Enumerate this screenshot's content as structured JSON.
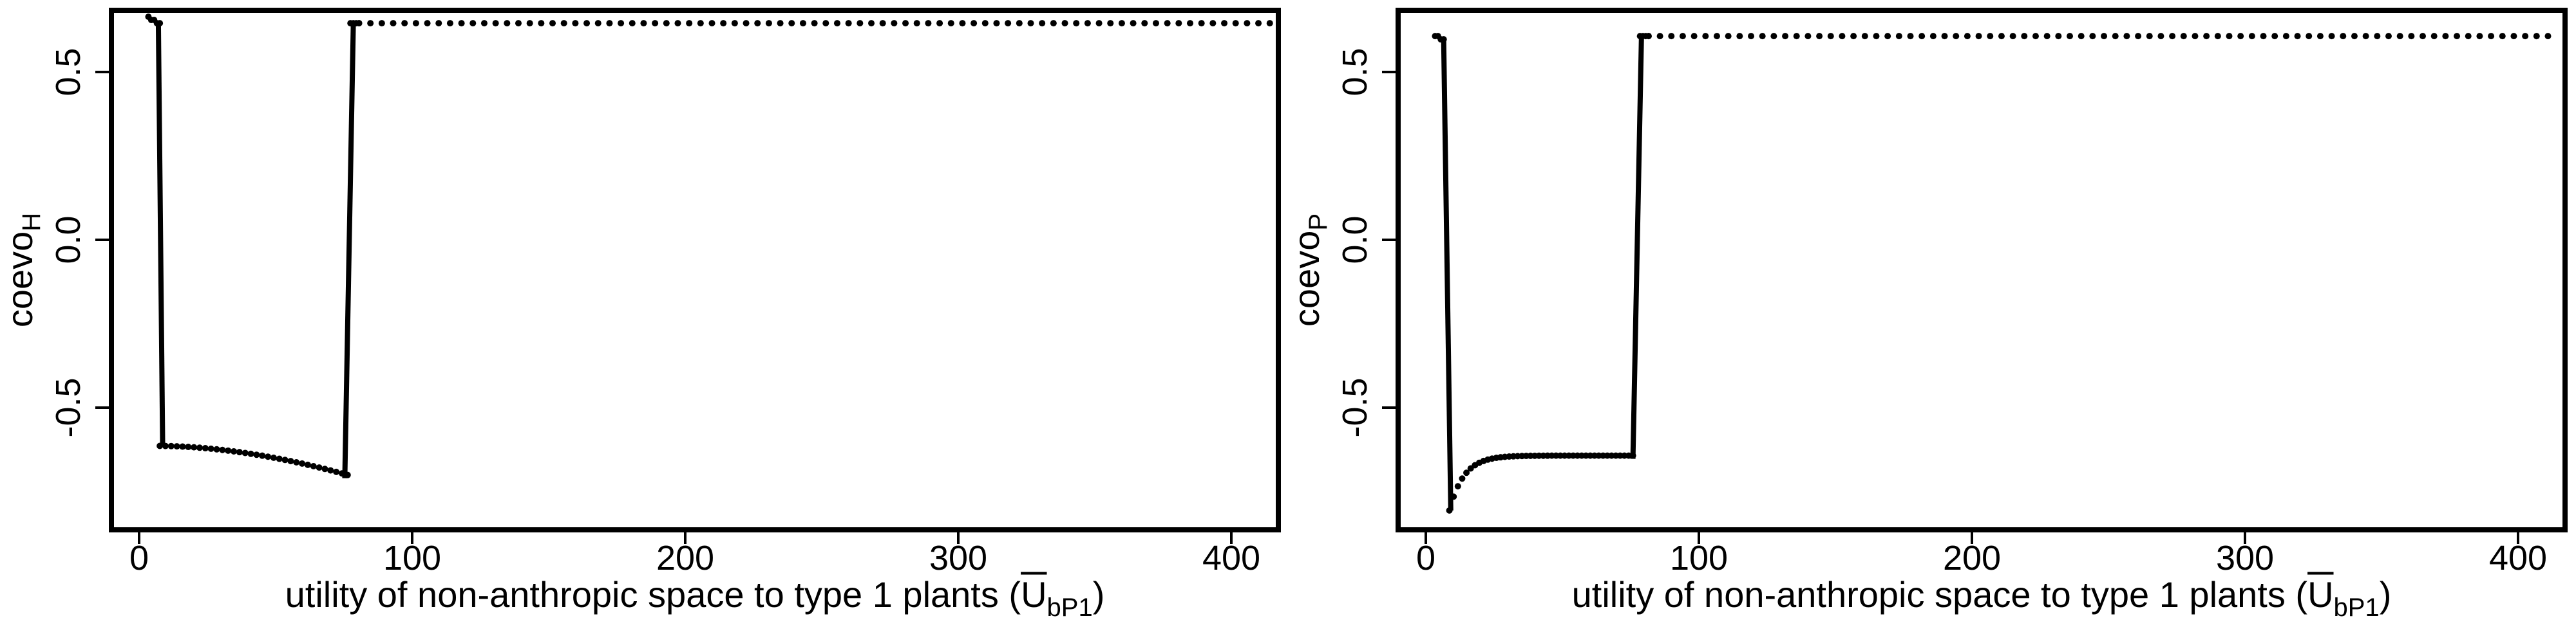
{
  "chart_data": [
    {
      "type": "scatter",
      "title": "",
      "xlabel": {
        "main": "utility of non-anthropic space to type 1 plants (",
        "symbol": "U",
        "subscript": "bP1",
        "close": ")"
      },
      "ylabel": {
        "main": "coevo",
        "subscript": "H"
      },
      "xlim": [
        -5,
        405
      ],
      "ylim": [
        -0.93,
        0.68
      ],
      "xticks": [
        0,
        100,
        200,
        300,
        400
      ],
      "xtick_labels": [
        "0",
        "100",
        "200",
        "300",
        "400"
      ],
      "yticks": [
        0.5,
        0.0,
        -0.5
      ],
      "ytick_labels": [
        "0.5",
        "0.0",
        "-0.5"
      ],
      "grid": false,
      "legend": "none",
      "color": "#000000",
      "segments": [
        {
          "x_start": 8,
          "x_end": 12,
          "x_step": 1,
          "y": [
            0.66,
            0.65,
            0.65,
            0.64,
            0.64
          ]
        },
        {
          "x_start": 12,
          "x_end": 78,
          "x_step": 2,
          "curve": "slow_decay",
          "y_start": -0.67,
          "y_end": -0.76
        },
        {
          "x_start": 79,
          "x_end": 82,
          "x_step": 1,
          "y": [
            0.64,
            0.64,
            0.64,
            0.64
          ]
        },
        {
          "x_start": 82,
          "x_end": 400,
          "x_step": 4,
          "constant": 0.64
        }
      ],
      "jumps": [
        {
          "x": [
            11.5,
            13
          ],
          "y": [
            0.64,
            -0.67
          ]
        },
        {
          "x": [
            77,
            80
          ],
          "y": [
            -0.77,
            0.64
          ]
        }
      ]
    },
    {
      "type": "scatter",
      "title": "",
      "xlabel": {
        "main": "utility of non-anthropic space to type 1 plants (",
        "symbol": "U",
        "subscript": "bP1",
        "close": ")"
      },
      "ylabel": {
        "main": "coevo",
        "subscript": "P"
      },
      "xlim": [
        -5,
        405
      ],
      "ylim": [
        -0.93,
        0.68
      ],
      "xticks": [
        0,
        100,
        200,
        300,
        400
      ],
      "xtick_labels": [
        "0",
        "100",
        "200",
        "300",
        "400"
      ],
      "yticks": [
        0.5,
        0.0,
        -0.5
      ],
      "ytick_labels": [
        "0.5",
        "0.0",
        "-0.5"
      ],
      "grid": false,
      "legend": "none",
      "color": "#000000",
      "segments": [
        {
          "x_start": 8,
          "x_end": 11,
          "x_step": 1,
          "y": [
            0.6,
            0.6,
            0.59,
            0.59
          ]
        },
        {
          "x_start": 13,
          "x_end": 78,
          "x_step": 1.5,
          "curve": "fast_recovery",
          "y_start": -0.87,
          "y_end": -0.7
        },
        {
          "x_start": 80,
          "x_end": 83,
          "x_step": 1,
          "y": [
            0.6,
            0.6,
            0.6,
            0.6
          ]
        },
        {
          "x_start": 83,
          "x_end": 400,
          "x_step": 4,
          "constant": 0.6
        }
      ],
      "jumps": [
        {
          "x": [
            11,
            13.5
          ],
          "y": [
            0.59,
            -0.87
          ]
        },
        {
          "x": [
            77.5,
            80.5
          ],
          "y": [
            -0.71,
            0.6
          ]
        }
      ]
    }
  ]
}
